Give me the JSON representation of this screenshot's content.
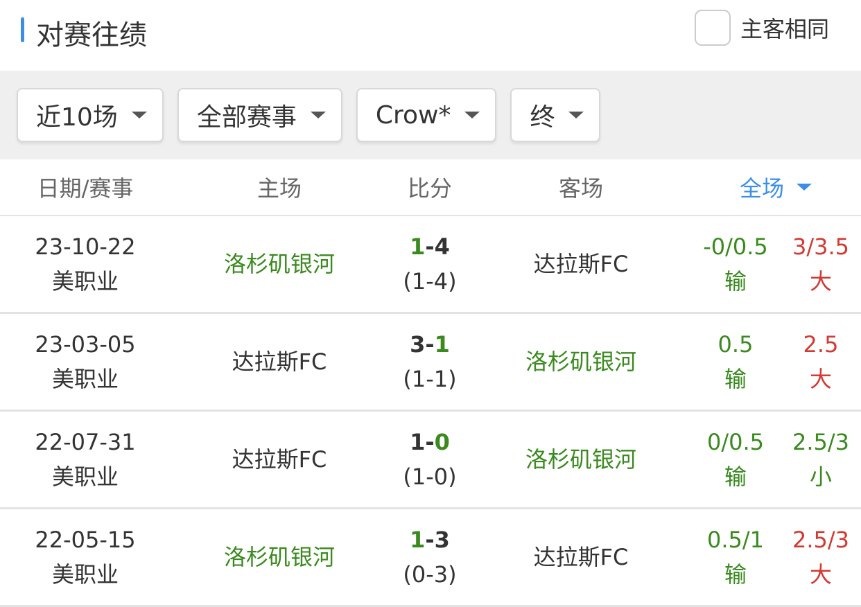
{
  "header": {
    "title": "对赛往绩",
    "same_home_away_label": "主客相同",
    "same_home_away_checked": false
  },
  "filters": [
    {
      "label": "近10场"
    },
    {
      "label": "全部赛事"
    },
    {
      "label": "Crow*"
    },
    {
      "label": "终"
    }
  ],
  "table": {
    "columns": [
      "日期/赛事",
      "主场",
      "比分",
      "客场",
      "全场"
    ],
    "rows": [
      {
        "date": "23-10-22",
        "league": "美职业",
        "home": "洛杉矶银河",
        "home_goals": "1",
        "away_goals": "4",
        "winner": "home",
        "half": "(1-4)",
        "away": "达拉斯FC",
        "handicap": "-0/0.5",
        "handicap_result": "输",
        "ou": "3/3.5",
        "ou_result": "大",
        "highlight_home": true,
        "ou_color": "red"
      },
      {
        "date": "23-03-05",
        "league": "美职业",
        "home": "达拉斯FC",
        "home_goals": "3",
        "away_goals": "1",
        "winner": "away",
        "half": "(1-1)",
        "away": "洛杉矶银河",
        "handicap": "0.5",
        "handicap_result": "输",
        "ou": "2.5",
        "ou_result": "大",
        "highlight_home": false,
        "ou_color": "red"
      },
      {
        "date": "22-07-31",
        "league": "美职业",
        "home": "达拉斯FC",
        "home_goals": "1",
        "away_goals": "0",
        "winner": "away",
        "half": "(1-0)",
        "away": "洛杉矶银河",
        "handicap": "0/0.5",
        "handicap_result": "输",
        "ou": "2.5/3",
        "ou_result": "小",
        "highlight_home": false,
        "ou_color": "green"
      },
      {
        "date": "22-05-15",
        "league": "美职业",
        "home": "洛杉矶银河",
        "home_goals": "1",
        "away_goals": "3",
        "winner": "home",
        "half": "(0-3)",
        "away": "达拉斯FC",
        "handicap": "0.5/1",
        "handicap_result": "输",
        "ou": "2.5/3",
        "ou_result": "大",
        "highlight_home": true,
        "ou_color": "red"
      }
    ]
  },
  "colors": {
    "accent": "#3a8ee6",
    "green": "#3a8a1f",
    "red": "#d23a32"
  }
}
